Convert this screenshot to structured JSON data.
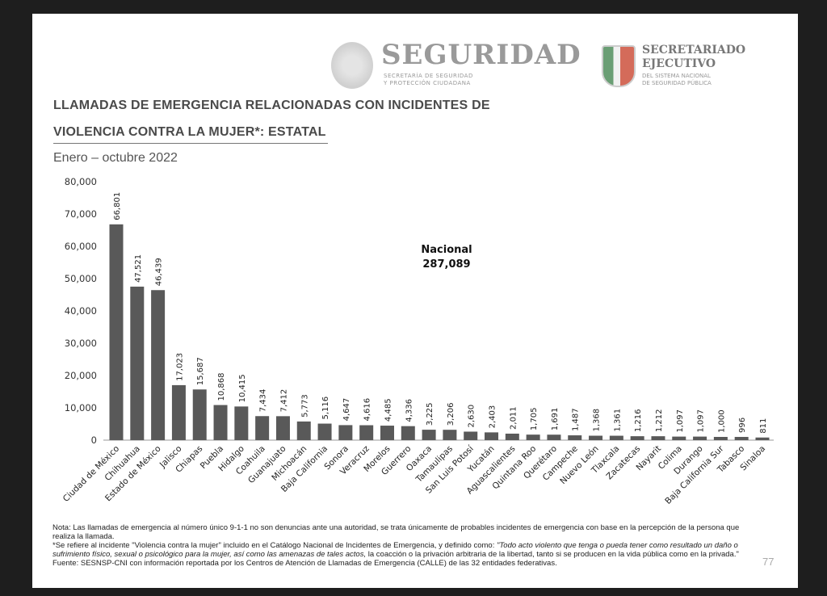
{
  "header": {
    "logo_main": "SEGURIDAD",
    "logo_main_sub": [
      "SECRETARÍA DE SEGURIDAD",
      "Y PROTECCIÓN CIUDADANA"
    ],
    "logo_secondary": [
      "SECRETARIADO",
      "EJECUTIVO"
    ],
    "logo_secondary_sub": [
      "DEL SISTEMA NACIONAL",
      "DE SEGURIDAD PÚBLICA"
    ]
  },
  "title_line1": "LLAMADAS DE EMERGENCIA RELACIONADAS CON INCIDENTES DE",
  "title_line2": "VIOLENCIA CONTRA LA MUJER*: ESTATAL",
  "subtitle": "Enero – octubre 2022",
  "chart_data": {
    "type": "bar",
    "categories": [
      "Ciudad de México",
      "Chihuahua",
      "Estado de México",
      "Jalisco",
      "Chiapas",
      "Puebla",
      "Hidalgo",
      "Coahuila",
      "Guanajuato",
      "Michoacán",
      "Baja California",
      "Sonora",
      "Veracruz",
      "Morelos",
      "Guerrero",
      "Oaxaca",
      "Tamaulipas",
      "San Luis Potosí",
      "Yucatán",
      "Aguascalientes",
      "Quintana Roo",
      "Querétaro",
      "Campeche",
      "Nuevo León",
      "Tlaxcala",
      "Zacatecas",
      "Nayarit",
      "Colima",
      "Durango",
      "Baja California Sur",
      "Tabasco",
      "Sinaloa"
    ],
    "values": [
      66801,
      47521,
      46439,
      17023,
      15687,
      10868,
      10415,
      7434,
      7412,
      5773,
      5116,
      4647,
      4616,
      4485,
      4336,
      3225,
      3206,
      2630,
      2403,
      2011,
      1705,
      1691,
      1487,
      1368,
      1361,
      1216,
      1212,
      1097,
      1097,
      1000,
      996,
      811
    ],
    "value_labels": [
      "66,801",
      "47,521",
      "46,439",
      "17,023",
      "15,687",
      "10,868",
      "10,415",
      "7,434",
      "7,412",
      "5,773",
      "5,116",
      "4,647",
      "4,616",
      "4,485",
      "4,336",
      "3,225",
      "3,206",
      "2,630",
      "2,403",
      "2,011",
      "1,705",
      "1,691",
      "1,487",
      "1,368",
      "1,361",
      "1,216",
      "1,212",
      "1,097",
      "1,097",
      "1,000",
      "996",
      "811"
    ],
    "ylim": [
      0,
      80000
    ],
    "yticks": [
      "0",
      "10,000",
      "20,000",
      "30,000",
      "40,000",
      "50,000",
      "60,000",
      "70,000",
      "80,000"
    ],
    "grid": false,
    "bar_color": "#595959",
    "annotation": {
      "label": "Nacional",
      "value": "287,089"
    }
  },
  "notes": {
    "nota": "Nota: Las llamadas de emergencia al número único 9-1-1 no son denuncias ante una autoridad, se trata únicamente de probables incidentes de emergencia con base en la percepción de la persona que realiza la llamada.",
    "def_pre": "*Se refiere al incidente \"Violencia contra la mujer\" incluido en el Catálogo Nacional de Incidentes de Emergencia, y definido como: ",
    "def_italic": "\"Todo acto violento que tenga o pueda tener como resultado un daño o sufrimiento físico, sexual o psicológico para la mujer, así como las amenazas de tales actos,",
    "def_post": " la coacción o la privación arbitraria de la libertad, tanto si se producen en la vida pública como en la privada.\"",
    "fuente": "Fuente: SESNSP-CNI con información reportada por los Centros de Atención de Llamadas de Emergencia (CALLE) de las 32 entidades federativas."
  },
  "page_number": "77"
}
